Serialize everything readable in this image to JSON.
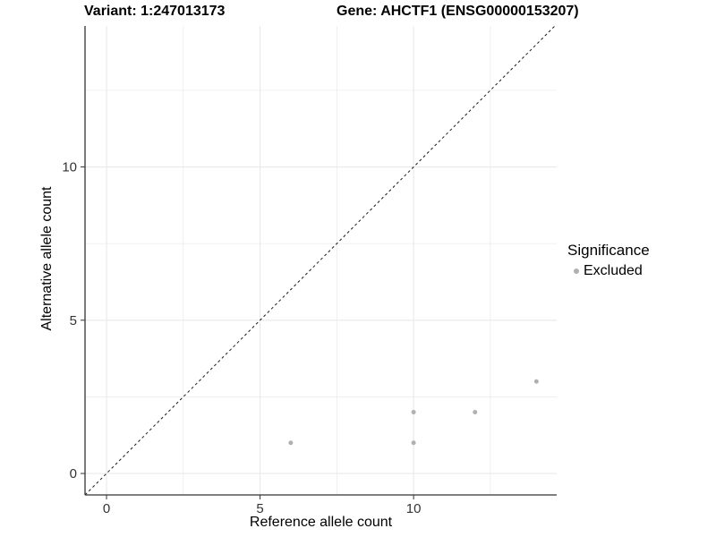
{
  "chart_data": {
    "type": "scatter",
    "title_left": "Variant: 1:247013173",
    "title_right": "Gene: AHCTF1 (ENSG00000153207)",
    "xlabel": "Reference allele count",
    "ylabel": "Alternative allele count",
    "xlim": [
      -0.7,
      14.66
    ],
    "ylim": [
      -0.7,
      14.6
    ],
    "x_ticks": [
      0,
      5,
      10
    ],
    "y_ticks": [
      0,
      5,
      10
    ],
    "x_minor_ticks": [
      2.5,
      7.5,
      12.5
    ],
    "y_minor_ticks": [
      2.5,
      7.5,
      12.5
    ],
    "grid": true,
    "grid_color": "#e9e9e9",
    "axis_color": "#333333",
    "tick_label_color": "#333333",
    "series": [
      {
        "name": "Excluded",
        "color": "#b0b0b0",
        "points": [
          [
            6,
            1
          ],
          [
            10,
            1
          ],
          [
            10,
            2
          ],
          [
            12,
            2
          ],
          [
            14,
            3
          ]
        ]
      }
    ],
    "reference_line": {
      "slope": 1,
      "intercept": 0,
      "style": "dashed",
      "color": "#1a1a1a"
    },
    "legend": {
      "title": "Significance",
      "position": "right",
      "items": [
        {
          "label": "Excluded",
          "color": "#b0b0b0",
          "marker": "circle"
        }
      ]
    }
  }
}
